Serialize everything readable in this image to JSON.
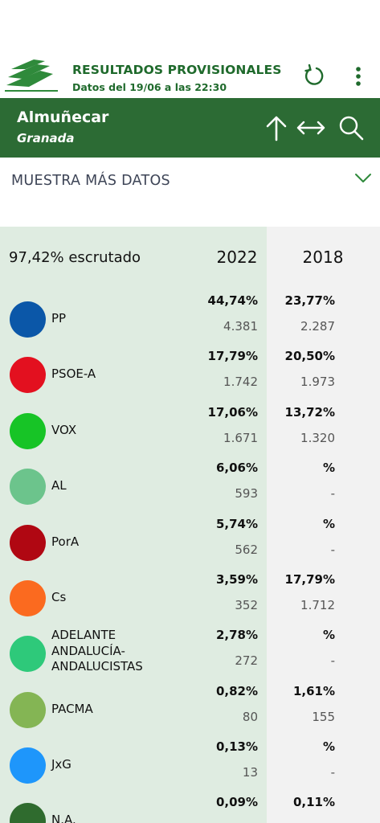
{
  "header": {
    "title": "RESULTADOS PROVISIONALES",
    "subtitle": "Datos del 19/06 a las 22:30",
    "logo_icon": "junta-andalucia-logo",
    "refresh_icon": "refresh-icon",
    "more_icon": "more-vertical-icon"
  },
  "location": {
    "municipality": "Almuñecar",
    "province": "Granada",
    "up_icon": "arrow-up-icon",
    "expand_icon": "expand-horizontal-icon",
    "search_icon": "search-icon"
  },
  "more_data": {
    "label": "MUESTRA MÁS DATOS",
    "icon": "chevron-down-icon"
  },
  "results": {
    "scrutiny": "97,42% escrutado",
    "year_current": "2022",
    "year_previous": "2018",
    "parties": [
      {
        "name": "PP",
        "color": "#0b57a8",
        "pct_2022": "44,74%",
        "votes_2022": "4.381",
        "pct_2018": "23,77%",
        "votes_2018": "2.287"
      },
      {
        "name": "PSOE-A",
        "color": "#e3101f",
        "pct_2022": "17,79%",
        "votes_2022": "1.742",
        "pct_2018": "20,50%",
        "votes_2018": "1.973"
      },
      {
        "name": "VOX",
        "color": "#17c426",
        "pct_2022": "17,06%",
        "votes_2022": "1.671",
        "pct_2018": "13,72%",
        "votes_2018": "1.320"
      },
      {
        "name": "AL",
        "color": "#6cc48c",
        "pct_2022": "6,06%",
        "votes_2022": "593",
        "pct_2018": "%",
        "votes_2018": "-"
      },
      {
        "name": "PorA",
        "color": "#b00712",
        "pct_2022": "5,74%",
        "votes_2022": "562",
        "pct_2018": "%",
        "votes_2018": "-"
      },
      {
        "name": "Cs",
        "color": "#fb6a1f",
        "pct_2022": "3,59%",
        "votes_2022": "352",
        "pct_2018": "17,79%",
        "votes_2018": "1.712"
      },
      {
        "name": "ADELANTE ANDALUCÍA-ANDALUCISTAS",
        "line1": "ADELANTE",
        "line2": "ANDALUCÍA-",
        "line3": "ANDALUCISTAS",
        "color": "#2ec97a",
        "pct_2022": "2,78%",
        "votes_2022": "272",
        "pct_2018": "%",
        "votes_2018": "-"
      },
      {
        "name": "PACMA",
        "color": "#84b554",
        "pct_2022": "0,82%",
        "votes_2022": "80",
        "pct_2018": "1,61%",
        "votes_2018": "155"
      },
      {
        "name": "JxG",
        "color": "#1e96fb",
        "pct_2022": "0,13%",
        "votes_2022": "13",
        "pct_2018": "%",
        "votes_2018": "-"
      },
      {
        "name": "N.A.",
        "color": "#2f6b2e",
        "pct_2022": "0,09%",
        "votes_2022": "",
        "pct_2018": "0,11%",
        "votes_2018": ""
      }
    ]
  }
}
